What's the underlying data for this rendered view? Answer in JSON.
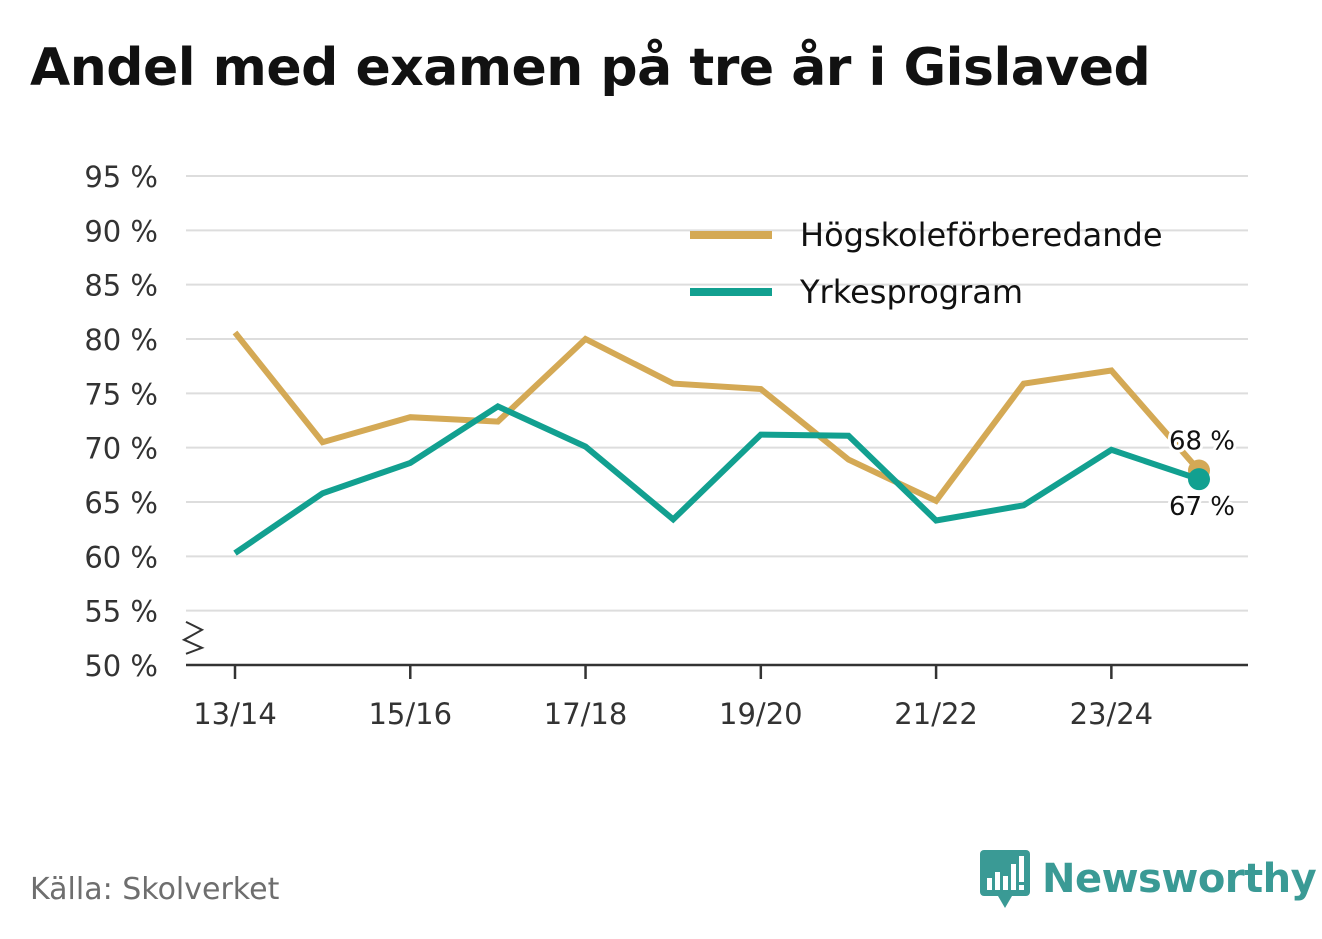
{
  "title": "Andel med examen på tre år i Gislaved",
  "source": "Källa: Skolverket",
  "brand": {
    "name": "Newsworthy",
    "color": "#3a9a95"
  },
  "chart_data": {
    "type": "line",
    "title": "Andel med examen på tre år i Gislaved",
    "xlabel": "",
    "ylabel": "",
    "categories": [
      "13/14",
      "14/15",
      "15/16",
      "16/17",
      "17/18",
      "18/19",
      "19/20",
      "20/21",
      "21/22",
      "22/23",
      "23/24",
      "24/25"
    ],
    "x_tick_labels": [
      "13/14",
      "",
      "15/16",
      "",
      "17/18",
      "",
      "19/20",
      "",
      "21/22",
      "",
      "23/24",
      ""
    ],
    "y_ticks": [
      50,
      55,
      60,
      65,
      70,
      75,
      80,
      85,
      90,
      95
    ],
    "y_tick_labels": [
      "50 %",
      "55 %",
      "60 %",
      "65 %",
      "70 %",
      "75 %",
      "80 %",
      "85 %",
      "90 %",
      "95 %"
    ],
    "ylim": [
      50,
      95
    ],
    "grid": true,
    "legend_position": "top-right",
    "series": [
      {
        "name": "Högskoleförberedande",
        "color": "#d4a955",
        "values": [
          80.6,
          70.5,
          72.8,
          72.4,
          80.0,
          75.9,
          75.4,
          68.9,
          65.1,
          75.9,
          77.1,
          67.9
        ],
        "end_label": "68 %"
      },
      {
        "name": "Yrkesprogram",
        "color": "#12a090",
        "values": [
          60.3,
          65.8,
          68.6,
          73.8,
          70.1,
          63.4,
          71.2,
          71.1,
          63.3,
          64.7,
          69.8,
          67.1
        ],
        "end_label": "67 %"
      }
    ]
  }
}
